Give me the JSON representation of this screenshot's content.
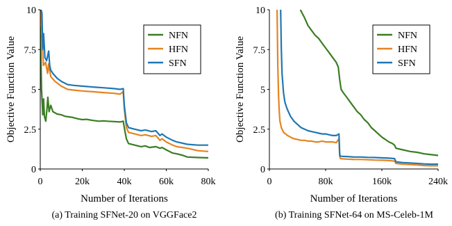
{
  "chart_data": [
    {
      "type": "line",
      "caption": "(a) Training SFNet-20 on VGGFace2",
      "xlabel": "Number of Iterations",
      "ylabel": "Objective Function Value",
      "xlim": [
        0,
        80000
      ],
      "ylim": [
        0,
        10
      ],
      "xticks": [
        0,
        20000,
        40000,
        60000,
        80000
      ],
      "xtick_labels": [
        "0",
        "20k",
        "40k",
        "60k",
        "80k"
      ],
      "yticks": [
        0,
        2.5,
        5,
        7.5,
        10
      ],
      "ytick_labels": [
        "0",
        "2.5",
        "5",
        "7.5",
        "10"
      ],
      "grid": false,
      "legend_position": "top-right",
      "series": [
        {
          "name": "NFN",
          "color": "#3a7d22",
          "x": [
            0,
            600,
            1200,
            1600,
            2000,
            2600,
            3200,
            3600,
            4200,
            5000,
            6000,
            8000,
            10000,
            12000,
            15000,
            18000,
            20000,
            22000,
            25000,
            28000,
            30000,
            32000,
            35000,
            38000,
            39500,
            40000,
            41000,
            42000,
            45000,
            48000,
            50000,
            52000,
            55000,
            57000,
            58000,
            60000,
            63000,
            65000,
            68000,
            70000,
            75000,
            80000
          ],
          "y": [
            9.0,
            5.0,
            3.4,
            4.4,
            3.3,
            3.0,
            3.8,
            4.5,
            3.6,
            4.0,
            3.6,
            3.45,
            3.4,
            3.3,
            3.25,
            3.15,
            3.1,
            3.12,
            3.05,
            3.0,
            3.02,
            3.0,
            2.98,
            2.95,
            3.0,
            2.6,
            1.9,
            1.6,
            1.5,
            1.4,
            1.45,
            1.35,
            1.4,
            1.3,
            1.35,
            1.2,
            1.0,
            0.95,
            0.85,
            0.75,
            0.72,
            0.7
          ]
        },
        {
          "name": "HFN",
          "color": "#e5841f",
          "x": [
            0,
            400,
            800,
            1500,
            2500,
            3500,
            4000,
            5000,
            7000,
            10000,
            13000,
            16000,
            20000,
            25000,
            30000,
            35000,
            38000,
            39500,
            40000,
            41000,
            42000,
            45000,
            48000,
            50000,
            53000,
            55000,
            57000,
            58000,
            60000,
            63000,
            65000,
            70000,
            75000,
            80000
          ],
          "y": [
            10,
            9.5,
            8.5,
            6.5,
            6.7,
            6.0,
            6.6,
            5.8,
            5.5,
            5.2,
            5.0,
            4.95,
            4.9,
            4.85,
            4.8,
            4.75,
            4.7,
            4.85,
            3.8,
            2.6,
            2.3,
            2.2,
            2.1,
            2.15,
            2.05,
            2.1,
            1.8,
            1.9,
            1.7,
            1.5,
            1.4,
            1.3,
            1.15,
            1.1
          ]
        },
        {
          "name": "SFN",
          "color": "#1f77b4",
          "x": [
            0,
            400,
            800,
            1200,
            1600,
            2200,
            3000,
            4000,
            4500,
            5000,
            6000,
            8000,
            10000,
            13000,
            16000,
            20000,
            25000,
            30000,
            35000,
            38000,
            39500,
            40000,
            41000,
            42000,
            45000,
            48000,
            50000,
            53000,
            55000,
            57000,
            58000,
            60000,
            63000,
            65000,
            70000,
            75000,
            80000
          ],
          "y": [
            10,
            10,
            9.8,
            7.5,
            8.5,
            7.0,
            6.8,
            7.4,
            6.5,
            6.2,
            6.0,
            5.7,
            5.5,
            5.3,
            5.25,
            5.2,
            5.15,
            5.1,
            5.05,
            5.0,
            5.05,
            4.0,
            2.9,
            2.6,
            2.5,
            2.4,
            2.45,
            2.35,
            2.4,
            2.1,
            2.2,
            2.0,
            1.8,
            1.7,
            1.55,
            1.5,
            1.5
          ]
        }
      ]
    },
    {
      "type": "line",
      "caption": "(b) Training SFNet-64 on MS-Celeb-1M",
      "xlabel": "Number of Iterations",
      "ylabel": "Objective Function Value",
      "xlim": [
        0,
        240000
      ],
      "ylim": [
        0,
        10
      ],
      "xticks": [
        0,
        80000,
        160000,
        240000
      ],
      "xtick_labels": [
        "0",
        "80k",
        "160k",
        "240k"
      ],
      "yticks": [
        0,
        2.5,
        5,
        7.5,
        10
      ],
      "ytick_labels": [
        "0",
        "2.5",
        "5",
        "7.5",
        "10"
      ],
      "grid": false,
      "legend_position": "top-right",
      "series": [
        {
          "name": "NFN",
          "color": "#3a7d22",
          "x": [
            44000,
            50000,
            55000,
            60000,
            65000,
            70000,
            75000,
            80000,
            85000,
            90000,
            95000,
            98000,
            100000,
            102000,
            105000,
            110000,
            115000,
            120000,
            125000,
            130000,
            135000,
            140000,
            145000,
            150000,
            155000,
            160000,
            165000,
            170000,
            175000,
            178000,
            180000,
            190000,
            200000,
            210000,
            220000,
            230000,
            240000
          ],
          "y": [
            10,
            9.5,
            9.0,
            8.7,
            8.4,
            8.2,
            7.9,
            7.6,
            7.3,
            7.0,
            6.7,
            6.4,
            5.6,
            5.0,
            4.8,
            4.5,
            4.2,
            3.9,
            3.6,
            3.4,
            3.1,
            2.9,
            2.6,
            2.4,
            2.2,
            2.0,
            1.85,
            1.7,
            1.6,
            1.5,
            1.3,
            1.2,
            1.1,
            1.05,
            0.95,
            0.9,
            0.85
          ]
        },
        {
          "name": "HFN",
          "color": "#e5841f",
          "x": [
            11000,
            12000,
            13000,
            14000,
            15000,
            17000,
            20000,
            23000,
            26000,
            30000,
            35000,
            40000,
            45000,
            50000,
            55000,
            60000,
            65000,
            70000,
            75000,
            80000,
            85000,
            90000,
            95000,
            99000,
            100000,
            101000,
            110000,
            120000,
            130000,
            140000,
            150000,
            160000,
            170000,
            178000,
            180000,
            190000,
            200000,
            210000,
            220000,
            230000,
            240000
          ],
          "y": [
            10,
            6.5,
            4.6,
            3.6,
            3.0,
            2.6,
            2.3,
            2.2,
            2.1,
            2.0,
            1.9,
            1.85,
            1.8,
            1.8,
            1.75,
            1.75,
            1.7,
            1.7,
            1.75,
            1.7,
            1.7,
            1.7,
            1.65,
            1.9,
            0.8,
            0.65,
            0.62,
            0.6,
            0.6,
            0.58,
            0.56,
            0.55,
            0.53,
            0.5,
            0.35,
            0.3,
            0.28,
            0.25,
            0.22,
            0.2,
            0.2
          ]
        },
        {
          "name": "SFN",
          "color": "#1f77b4",
          "x": [
            16000,
            17000,
            18000,
            20000,
            22000,
            25000,
            28000,
            30000,
            35000,
            40000,
            45000,
            50000,
            55000,
            60000,
            65000,
            70000,
            75000,
            80000,
            85000,
            90000,
            95000,
            99000,
            100000,
            101000,
            110000,
            120000,
            130000,
            140000,
            150000,
            160000,
            170000,
            178000,
            180000,
            190000,
            200000,
            210000,
            220000,
            230000,
            240000
          ],
          "y": [
            10,
            7.5,
            6.0,
            4.8,
            4.2,
            3.8,
            3.5,
            3.3,
            3.0,
            2.8,
            2.6,
            2.5,
            2.4,
            2.35,
            2.3,
            2.25,
            2.2,
            2.2,
            2.15,
            2.1,
            2.1,
            2.2,
            0.9,
            0.8,
            0.78,
            0.75,
            0.75,
            0.73,
            0.72,
            0.7,
            0.68,
            0.65,
            0.45,
            0.4,
            0.38,
            0.35,
            0.32,
            0.3,
            0.3
          ]
        }
      ]
    }
  ]
}
